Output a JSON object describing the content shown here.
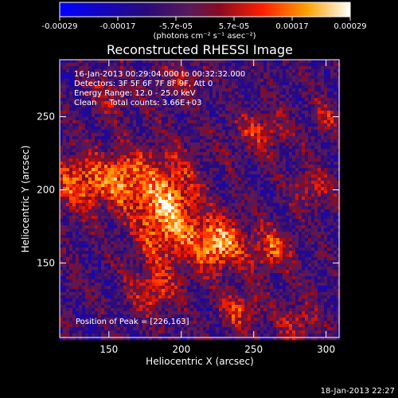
{
  "chart_data": {
    "type": "heatmap",
    "title": "Reconstructed RHESSI Image",
    "xlabel": "Heliocentric X (arcsec)",
    "ylabel": "Heliocentric Y (arcsec)",
    "xlim": [
      116,
      309
    ],
    "ylim": [
      99,
      289
    ],
    "x_ticks": [
      150,
      200,
      250,
      300
    ],
    "y_ticks": [
      150,
      200,
      250
    ],
    "peak": [
      226,
      163
    ],
    "colorbar": {
      "ticks": [
        "-0.00029",
        "-0.00017",
        "-5.7e-05",
        "5.7e-05",
        "0.00017",
        "0.00029"
      ],
      "range": [
        -0.00029,
        0.00029
      ],
      "unit_label": "(photons cm⁻² s⁻¹ asec⁻²)"
    },
    "annotations": {
      "time": "16-Jan-2013 00:29:04.000 to 00:32:32.000",
      "detectors": "Detectors: 3F 5F 6F 7F 8F 9F, Att 0",
      "energy": "Energy Range: 12.0 - 25.0 keV",
      "method": "Clean     Total counts: 3.66E+03",
      "peak": "Position of Peak = [226,163]"
    },
    "footer_date": "18-Jan-2013 22:27",
    "sources": [
      {
        "x": 190,
        "y": 185,
        "amp": 0.00029,
        "sx": 16,
        "sy": 26
      },
      {
        "x": 226,
        "y": 163,
        "amp": 0.00029,
        "sx": 12,
        "sy": 12
      },
      {
        "x": 130,
        "y": 205,
        "amp": 0.00022,
        "sx": 14,
        "sy": 14
      },
      {
        "x": 160,
        "y": 208,
        "amp": 0.00019,
        "sx": 12,
        "sy": 14
      },
      {
        "x": 262,
        "y": 160,
        "amp": 0.0002,
        "sx": 10,
        "sy": 10
      },
      {
        "x": 255,
        "y": 240,
        "amp": 0.00014,
        "sx": 14,
        "sy": 10
      },
      {
        "x": 290,
        "y": 200,
        "amp": 0.00013,
        "sx": 10,
        "sy": 10
      },
      {
        "x": 240,
        "y": 118,
        "amp": 0.00017,
        "sx": 10,
        "sy": 10
      },
      {
        "x": 280,
        "y": 110,
        "amp": 0.00013,
        "sx": 10,
        "sy": 10
      },
      {
        "x": 180,
        "y": 130,
        "amp": 0.00016,
        "sx": 10,
        "sy": 10
      },
      {
        "x": 150,
        "y": 265,
        "amp": 0.00011,
        "sx": 10,
        "sy": 10
      },
      {
        "x": 200,
        "y": 275,
        "amp": 0.0001,
        "sx": 12,
        "sy": 8
      },
      {
        "x": 300,
        "y": 250,
        "amp": 0.00012,
        "sx": 8,
        "sy": 8
      }
    ]
  }
}
